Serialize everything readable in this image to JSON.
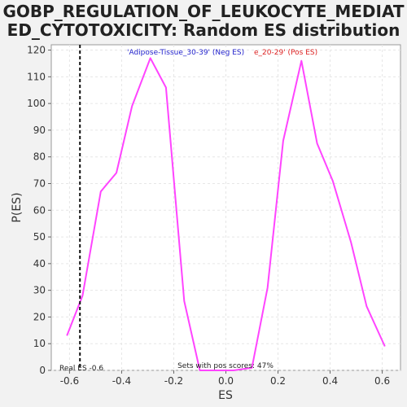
{
  "chart_data": {
    "type": "line",
    "title_line1": "GOBP_REGULATION_OF_LEUKOCYTE_MEDIAT",
    "title_line2": "ED_CYTOTOXICITY: Random ES distribution",
    "xlabel": "ES",
    "ylabel": "P(ES)",
    "xlim": [
      -0.67,
      0.67
    ],
    "ylim": [
      0,
      122
    ],
    "x_ticks": [
      "-0.6",
      "-0.4",
      "-0.2",
      "0.0",
      "0.2",
      "0.4",
      "0.6"
    ],
    "x_tick_values": [
      -0.6,
      -0.4,
      -0.2,
      0.0,
      0.2,
      0.4,
      0.6
    ],
    "y_ticks": [
      "0",
      "10",
      "20",
      "30",
      "40",
      "50",
      "60",
      "70",
      "80",
      "90",
      "100",
      "110",
      "120"
    ],
    "y_tick_values": [
      0,
      10,
      20,
      30,
      40,
      50,
      60,
      70,
      80,
      90,
      100,
      110,
      120
    ],
    "grid": true,
    "line_color": "#ff44ff",
    "real_es": -0.56,
    "real_es_label": "Real ES -0.6",
    "pos_scores_label": "Sets with pos scores: 47%",
    "legend_neg_label": "'Adipose-Tissue_30-39' (Neg ES)",
    "legend_neg_color": "#2222cc",
    "legend_pos_label": "e_20-29' (Pos ES)",
    "legend_pos_color": "#dd2222",
    "series": [
      {
        "x": [
          -0.61,
          -0.55,
          -0.48,
          -0.42,
          -0.36,
          -0.29,
          -0.23,
          -0.16,
          -0.1,
          -0.04,
          0.03,
          0.1,
          0.16,
          0.22,
          0.29,
          0.35,
          0.41,
          0.48,
          0.54,
          0.61
        ],
        "y": [
          13,
          28,
          67,
          74,
          99,
          117,
          106,
          26,
          0,
          0,
          0,
          1,
          31,
          86,
          116,
          85,
          71,
          48,
          24,
          9
        ]
      }
    ]
  }
}
